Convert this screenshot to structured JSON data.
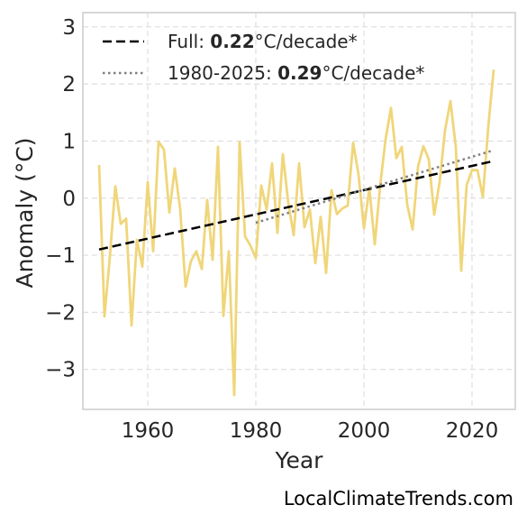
{
  "chart_data": {
    "type": "line",
    "xlabel": "Year",
    "ylabel": "Anomaly (°C)",
    "xlim": [
      1948,
      2028
    ],
    "ylim": [
      -3.7,
      3.25
    ],
    "x_ticks": [
      1960,
      1980,
      2000,
      2020
    ],
    "y_ticks": [
      -3,
      -2,
      -1,
      0,
      1,
      2,
      3
    ],
    "y_tick_labels": [
      "−3",
      "−2",
      "−1",
      "0",
      "1",
      "2",
      "3"
    ],
    "grid": true,
    "legend_position": "top-left",
    "series": [
      {
        "color": "#f0d67a",
        "style": "solid",
        "x": [
          1951,
          1952,
          1953,
          1954,
          1955,
          1956,
          1957,
          1958,
          1959,
          1960,
          1961,
          1962,
          1963,
          1964,
          1965,
          1966,
          1967,
          1968,
          1969,
          1970,
          1971,
          1972,
          1973,
          1974,
          1975,
          1976,
          1977,
          1978,
          1979,
          1980,
          1981,
          1982,
          1983,
          1984,
          1985,
          1986,
          1987,
          1988,
          1989,
          1990,
          1991,
          1992,
          1993,
          1994,
          1995,
          1996,
          1997,
          1998,
          1999,
          2000,
          2001,
          2002,
          2003,
          2004,
          2005,
          2006,
          2007,
          2008,
          2009,
          2010,
          2011,
          2012,
          2013,
          2014,
          2015,
          2016,
          2017,
          2018,
          2019,
          2020,
          2021,
          2022,
          2023,
          2024
        ],
        "values": [
          0.58,
          -2.07,
          -1.02,
          0.21,
          -0.45,
          -0.36,
          -2.23,
          -0.73,
          -1.2,
          0.28,
          -0.93,
          0.99,
          0.85,
          -0.25,
          0.52,
          -0.19,
          -1.55,
          -1.1,
          -0.93,
          -1.24,
          -0.03,
          -1.08,
          0.9,
          -2.06,
          -0.93,
          -3.45,
          0.98,
          -0.67,
          -0.83,
          -1.05,
          0.22,
          -0.2,
          0.61,
          -0.61,
          0.77,
          -0.08,
          -0.65,
          0.61,
          -0.51,
          -0.2,
          -1.14,
          -0.33,
          -1.31,
          0.14,
          -0.28,
          -0.18,
          -0.13,
          0.97,
          0.41,
          -0.53,
          0.18,
          -0.81,
          0.22,
          1.03,
          1.58,
          0.7,
          0.9,
          -0.11,
          -0.55,
          0.55,
          0.91,
          0.68,
          -0.29,
          0.28,
          1.19,
          1.7,
          0.89,
          -1.27,
          0.23,
          0.49,
          0.49,
          0.02,
          1.25,
          2.25
        ]
      },
      {
        "name": "Full: 0.22°C/decade*",
        "color": "#000000",
        "style": "dashed",
        "x": [
          1951,
          2024
        ],
        "values": [
          -0.9,
          0.65
        ]
      },
      {
        "name": "1980-2025: 0.29°C/decade*",
        "color": "#808080",
        "style": "dotted",
        "x": [
          1980,
          2024
        ],
        "values": [
          -0.43,
          0.84
        ]
      }
    ],
    "legend": [
      {
        "prefix": "Full: ",
        "bold": "0.22",
        "suffix": "°C/decade*",
        "color": "#000000",
        "style": "dashed"
      },
      {
        "prefix": "1980-2025: ",
        "bold": "0.29",
        "suffix": "°C/decade*",
        "color": "#808080",
        "style": "dotted"
      }
    ]
  },
  "watermark": "LocalClimateTrends.com"
}
